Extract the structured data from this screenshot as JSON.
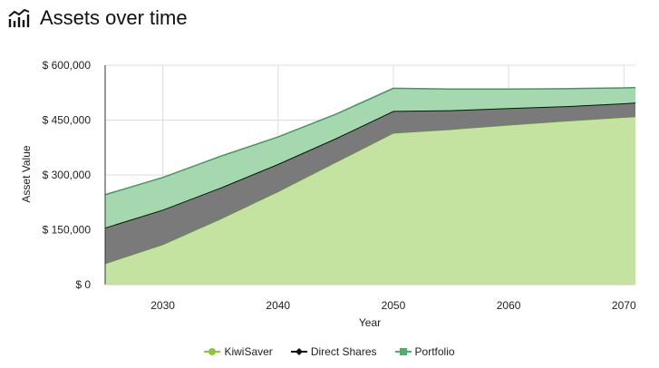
{
  "header": {
    "title": "Assets over time",
    "icon": "line-chart-icon"
  },
  "chart_data": {
    "type": "area",
    "stacking": "stacked",
    "xlabel": "Year",
    "ylabel": "Asset Value",
    "xlim": [
      2025,
      2071
    ],
    "ylim": [
      0,
      600000
    ],
    "x_ticks": [
      "2030",
      "2040",
      "2050",
      "2060",
      "2070"
    ],
    "y_ticks": [
      "$ 0",
      "$ 150,000",
      "$ 300,000",
      "$ 450,000",
      "$ 600,000"
    ],
    "grid": true,
    "legend_position": "bottom-center",
    "x": [
      2025,
      2030,
      2035,
      2040,
      2045,
      2050,
      2055,
      2060,
      2065,
      2070,
      2071
    ],
    "series": [
      {
        "name": "KiwiSaver",
        "color": "#8dc63f",
        "values": [
          58000,
          110000,
          180000,
          255000,
          335000,
          415000,
          425000,
          437000,
          448000,
          458000,
          460000
        ]
      },
      {
        "name": "Direct Shares",
        "color": "#111111",
        "values": [
          98000,
          95000,
          85000,
          75000,
          65000,
          60000,
          52000,
          46000,
          40000,
          38000,
          38000
        ]
      },
      {
        "name": "Portfolio",
        "color": "#4caf6a",
        "values": [
          90000,
          88000,
          86000,
          74000,
          66000,
          62000,
          58000,
          52000,
          48000,
          42000,
          41000
        ]
      }
    ]
  }
}
